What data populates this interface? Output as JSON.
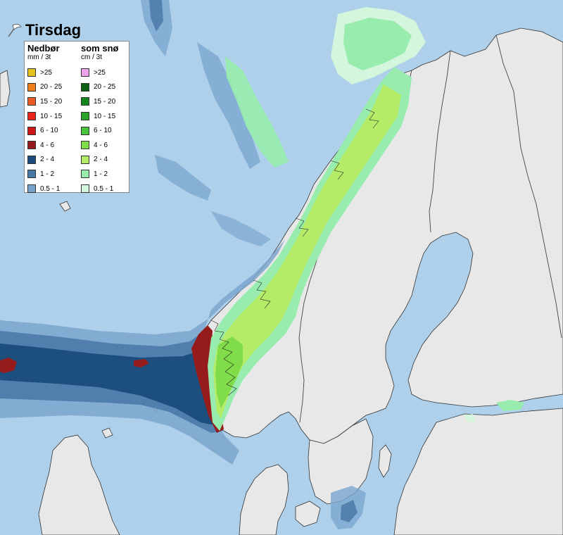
{
  "title": "Tirsdag",
  "legend": {
    "precip": {
      "heading": "Nedbør",
      "unit": "mm / 3t",
      "items": [
        {
          "label": ">25",
          "color": "#e3c41c"
        },
        {
          "label": "20 - 25",
          "color": "#f0801c"
        },
        {
          "label": "15 - 20",
          "color": "#ec5a24"
        },
        {
          "label": "10 - 15",
          "color": "#e8241c"
        },
        {
          "label": "6 - 10",
          "color": "#cc1818"
        },
        {
          "label": "4 - 6",
          "color": "#961c1c"
        },
        {
          "label": "2 - 4",
          "color": "#1c4c7c"
        },
        {
          "label": "1 - 2",
          "color": "#4878a4"
        },
        {
          "label": "0.5 - 1",
          "color": "#78a4cc"
        }
      ]
    },
    "snow": {
      "heading": "som snø",
      "unit": "cm / 3t",
      "items": [
        {
          "label": ">25",
          "color": "#eea4ec"
        },
        {
          "label": "20 - 25",
          "color": "#0c6014"
        },
        {
          "label": "15 - 20",
          "color": "#16861c"
        },
        {
          "label": "10 - 15",
          "color": "#2aa42a"
        },
        {
          "label": "6 - 10",
          "color": "#48c43c"
        },
        {
          "label": "4 - 6",
          "color": "#80dc48"
        },
        {
          "label": "2 - 4",
          "color": "#b4ec68"
        },
        {
          "label": "1 - 2",
          "color": "#98ecae"
        },
        {
          "label": "0.5 - 1",
          "color": "#d4f6dc"
        }
      ]
    }
  },
  "colors": {
    "sea": "#aed0ea",
    "land": "#e8e8e8",
    "border": "#444444"
  },
  "icons": {
    "logo": "umbrella-icon"
  }
}
